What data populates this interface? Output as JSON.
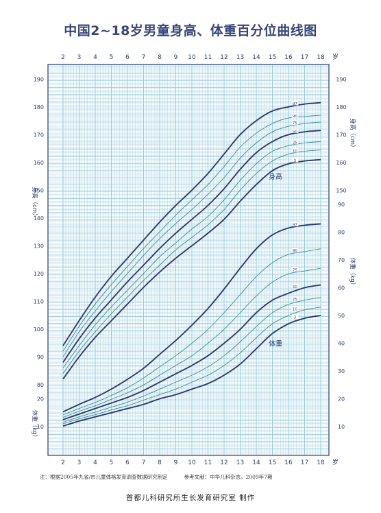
{
  "title": "中国2~18岁男童身高、体重百分位曲线图",
  "note": "注：根据2005年九省/市儿童体格发育调查数据研究制定",
  "reference": "参考文献：中华儿科杂志，2009年7期",
  "maker": "首都儿科研究所生长发育研究室  制作",
  "colors": {
    "grid": "#8fc7dc",
    "frame": "#2d3a6e",
    "major": "#2d3a6e",
    "minor": "#3a8a9a"
  },
  "chart_data": {
    "type": "line",
    "x_unit": "岁",
    "x_ticks": [
      2,
      3,
      4,
      5,
      6,
      7,
      8,
      9,
      10,
      11,
      12,
      13,
      14,
      15,
      16,
      17,
      18
    ],
    "height": {
      "name": "身高",
      "ylabel": "身高（cm）",
      "ylim": [
        75,
        190
      ],
      "left_ticks": [
        80,
        90,
        100,
        110,
        120,
        130,
        140,
        150,
        160,
        170,
        180,
        190
      ],
      "right_ticks": [
        150,
        160,
        170,
        180,
        190
      ],
      "x": [
        2,
        3,
        4,
        5,
        6,
        7,
        8,
        9,
        10,
        11,
        12,
        13,
        14,
        15,
        16,
        17,
        18
      ],
      "series": [
        {
          "name": "3",
          "values": [
            82,
            90,
            97,
            103,
            109,
            115,
            120.5,
            125.5,
            130,
            134.5,
            139.5,
            146,
            152,
            157,
            159.5,
            160.5,
            161
          ]
        },
        {
          "name": "10",
          "values": [
            84,
            92,
            99,
            105.5,
            111.5,
            117.5,
            123,
            128.5,
            133,
            137.5,
            143,
            150,
            156,
            160.5,
            163,
            164,
            164.5
          ]
        },
        {
          "name": "25",
          "values": [
            86,
            94,
            101.5,
            108,
            114,
            120,
            126,
            131,
            136,
            140.5,
            146.5,
            153.5,
            159.5,
            164,
            166,
            167,
            167.5
          ]
        },
        {
          "name": "50",
          "values": [
            88,
            96.5,
            104,
            110.5,
            117,
            123,
            129,
            134.5,
            139.5,
            144.5,
            150.5,
            157.5,
            163.5,
            167.5,
            170,
            171,
            171.5
          ]
        },
        {
          "name": "75",
          "values": [
            90,
            99,
            106.5,
            113.5,
            120,
            126.5,
            132.5,
            138,
            143,
            148.5,
            154.5,
            161.5,
            167,
            171,
            173,
            174,
            174.5
          ]
        },
        {
          "name": "90",
          "values": [
            92,
            101,
            109,
            116,
            122.5,
            129,
            135,
            141,
            146.5,
            152,
            158.5,
            165.5,
            170.5,
            174,
            176,
            176.5,
            177
          ]
        },
        {
          "name": "97",
          "values": [
            94,
            103,
            111.5,
            119,
            125.5,
            132,
            138.5,
            144.5,
            150,
            156,
            163,
            170,
            175,
            178.5,
            180,
            181,
            181.5
          ]
        }
      ],
      "label": "身高"
    },
    "weight": {
      "name": "体重",
      "ylabel": "体重（kg）",
      "left_ticks": [
        10,
        20
      ],
      "right_ticks": [
        10,
        20,
        30,
        40,
        50,
        60,
        70,
        80,
        90
      ],
      "x": [
        2,
        3,
        4,
        5,
        6,
        7,
        8,
        9,
        10,
        11,
        12,
        13,
        14,
        15,
        16,
        17,
        18
      ],
      "series": [
        {
          "name": "3",
          "values": [
            10.2,
            12,
            13.5,
            15,
            16.5,
            18,
            20,
            21.5,
            23.5,
            25.5,
            28.5,
            32.5,
            38,
            43.5,
            47,
            49,
            50
          ]
        },
        {
          "name": "10",
          "values": [
            11,
            12.8,
            14.3,
            16,
            17.5,
            19.5,
            21.5,
            23.5,
            26,
            28.5,
            32,
            36.5,
            42,
            47,
            50,
            52,
            53
          ]
        },
        {
          "name": "25",
          "values": [
            11.6,
            13.5,
            15.2,
            17,
            18.8,
            21,
            23.5,
            26,
            28.5,
            31.5,
            35.5,
            40.5,
            46,
            51,
            54,
            55.5,
            56.5
          ]
        },
        {
          "name": "50",
          "values": [
            12.5,
            14.5,
            16.5,
            18.5,
            20.5,
            23,
            26,
            29,
            32,
            35.5,
            40,
            45,
            51,
            55.5,
            58,
            60,
            61
          ]
        },
        {
          "name": "75",
          "values": [
            13.3,
            15.5,
            17.5,
            19.8,
            22.2,
            25,
            28.5,
            32,
            35.5,
            40,
            45,
            51,
            57,
            62,
            65,
            66,
            67
          ]
        },
        {
          "name": "90",
          "values": [
            14.2,
            16.5,
            18.7,
            21.2,
            24,
            27.5,
            31.5,
            35.5,
            40,
            45,
            51,
            57.5,
            64,
            69,
            72,
            73,
            74
          ]
        },
        {
          "name": "97",
          "values": [
            15.3,
            18,
            20.5,
            23.5,
            27,
            31,
            36,
            41,
            46.5,
            52.5,
            59.5,
            67,
            74,
            79,
            81.5,
            82.5,
            83
          ]
        }
      ],
      "label": "体重"
    }
  }
}
